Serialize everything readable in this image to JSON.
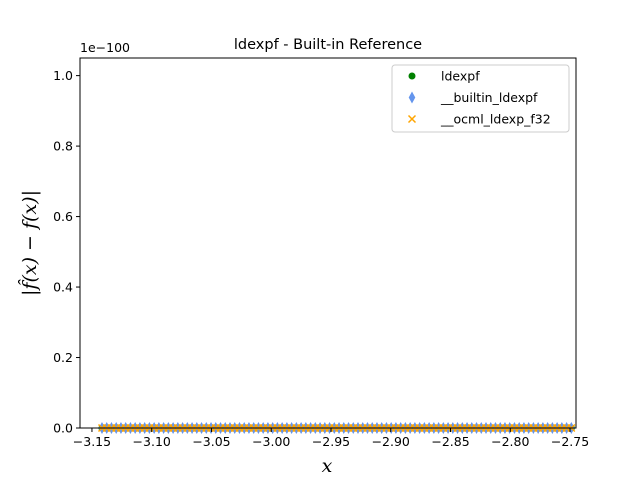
{
  "chart_data": {
    "type": "scatter",
    "title": "ldexpf - Built-in Reference",
    "xlabel": "x",
    "ylabel": "|f̂(x) − f(x)|",
    "y_offset_text": "1e−100",
    "xlim": [
      -3.16,
      -2.745
    ],
    "ylim": [
      0,
      1.05
    ],
    "x_ticks": [
      -3.15,
      -3.1,
      -3.05,
      -3.0,
      -2.95,
      -2.9,
      -2.85,
      -2.8,
      -2.75
    ],
    "x_tick_labels": [
      "−3.15",
      "−3.10",
      "−3.05",
      "−3.00",
      "−2.95",
      "−2.90",
      "−2.85",
      "−2.80",
      "−2.75"
    ],
    "y_ticks": [
      0.0,
      0.2,
      0.4,
      0.6,
      0.8,
      1.0
    ],
    "y_tick_labels": [
      "0.0",
      "0.2",
      "0.4",
      "0.6",
      "0.8",
      "1.0"
    ],
    "grid": false,
    "legend_position": "top-right",
    "x_range": [
      -3.1416,
      -2.7489
    ],
    "n_points": 100,
    "series": [
      {
        "name": "ldexpf",
        "marker": "circle",
        "color": "#008000",
        "value": 0
      },
      {
        "name": "__builtin_ldexpf",
        "marker": "thin_diamond",
        "color": "#6495ed",
        "value": 0
      },
      {
        "name": "__ocml_ldexp_f32",
        "marker": "x",
        "color": "#ffa500",
        "value": 0
      }
    ]
  }
}
